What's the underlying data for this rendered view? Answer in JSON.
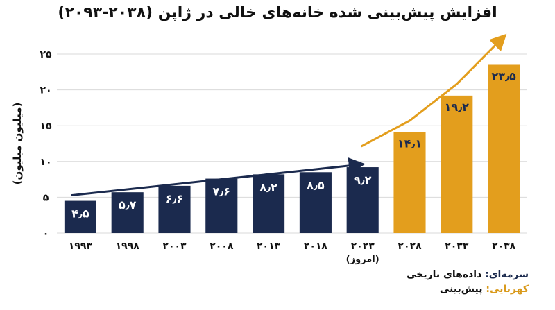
{
  "chart_data": {
    "type": "bar",
    "title": "افزایش پیش‌بینی شده خانه‌های خالی در ژاپن (۲۰۳۸-۲۰۹۳)",
    "ylabel": "(میلیون میلیون)",
    "xlabel": "",
    "ylim": [
      0,
      25
    ],
    "yticks": [
      "۰",
      "۵",
      "۱۰",
      "۱۵",
      "۲۰",
      "۲۵"
    ],
    "grid": true,
    "categories": [
      "۱۹۹۳",
      "۱۹۹۸",
      "۲۰۰۳",
      "۲۰۰۸",
      "۲۰۱۳",
      "۲۰۱۸",
      "۲۰۲۳",
      "۲۰۲۸",
      "۲۰۳۳",
      "۲۰۳۸"
    ],
    "category_sublabels": [
      "",
      "",
      "",
      "",
      "",
      "",
      "(امروز)",
      "",
      "",
      ""
    ],
    "values": [
      4.5,
      5.7,
      6.6,
      7.6,
      8.2,
      8.5,
      9.2,
      14.1,
      19.2,
      23.5
    ],
    "value_labels": [
      "۴٫۵",
      "۵٫۷",
      "۶٫۶",
      "۷٫۶",
      "۸٫۲",
      "۸٫۵",
      "۹٫۲",
      "۱۴٫۱",
      "۱۹٫۲",
      "۲۳٫۵"
    ],
    "bar_kinds": [
      "historical",
      "historical",
      "historical",
      "historical",
      "historical",
      "historical",
      "historical",
      "forecast",
      "forecast",
      "forecast"
    ],
    "colors": {
      "historical": "#1b2a4e",
      "forecast": "#e39e1d",
      "historical_label": "#ffffff",
      "forecast_label": "#1b2a4e",
      "grid": "#d9d9d9"
    }
  },
  "legend": {
    "historical_key": "سرمه‌ای:",
    "historical_text": " داده‌های تاریخی",
    "forecast_key": "کهربایی:",
    "forecast_text": " پیش‌بینی"
  }
}
